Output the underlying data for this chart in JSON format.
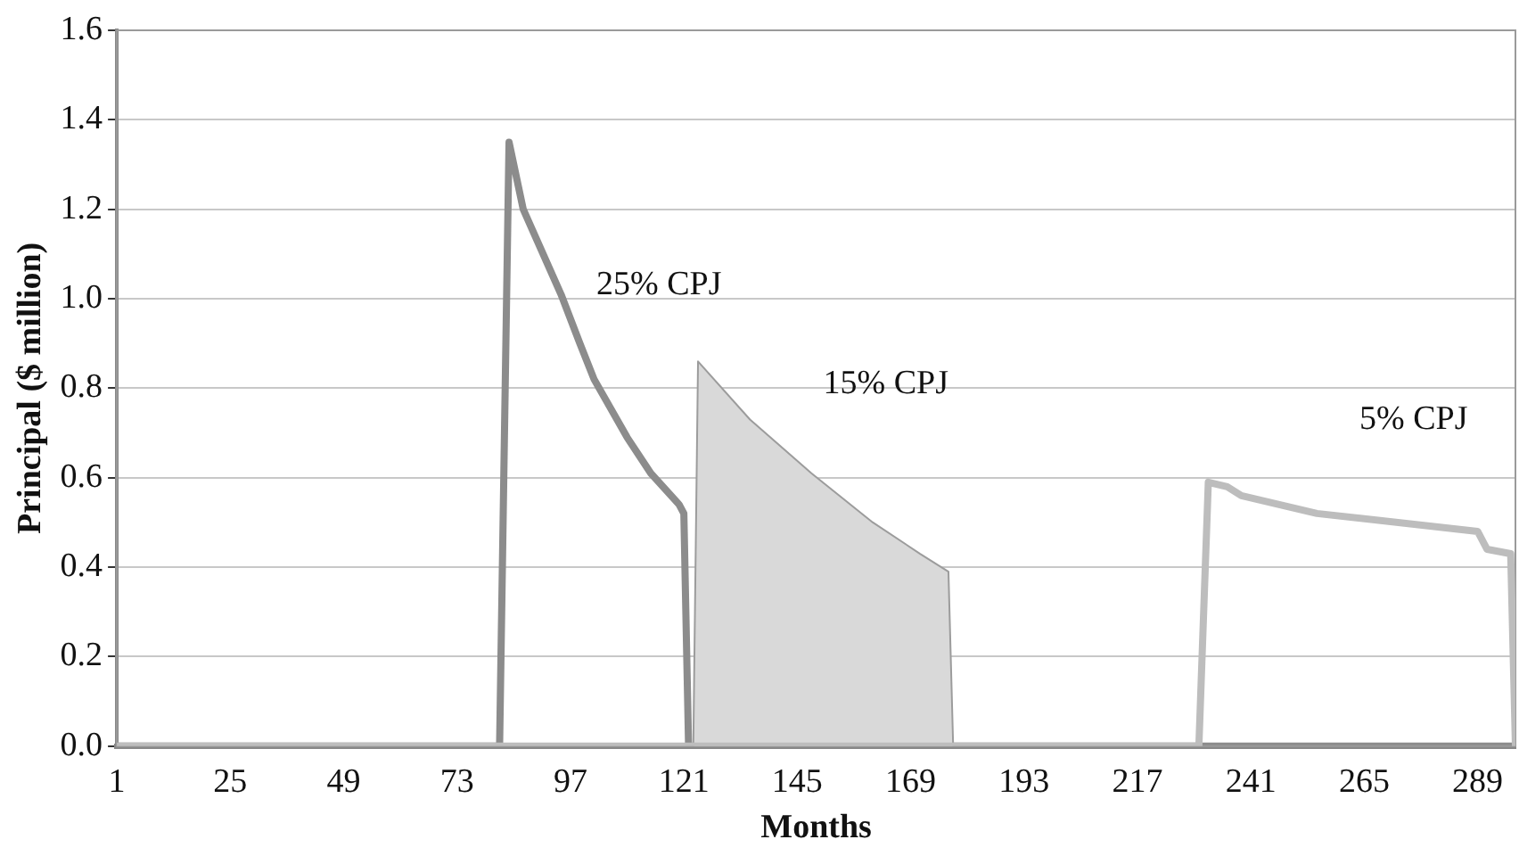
{
  "chart_data": {
    "type": "line",
    "xlabel": "Months",
    "ylabel": "Principal ($ million)",
    "xlim": [
      1,
      297
    ],
    "xticks": [
      1,
      25,
      49,
      73,
      97,
      121,
      145,
      169,
      193,
      217,
      241,
      265,
      289
    ],
    "ylim": [
      0,
      1.6
    ],
    "yticks": [
      {
        "value": 0,
        "label": "0.0"
      },
      {
        "value": 0.2,
        "label": "0.2"
      },
      {
        "value": 0.4,
        "label": "0.4"
      },
      {
        "value": 0.6,
        "label": "0.6"
      },
      {
        "value": 0.8,
        "label": "0.8"
      },
      {
        "value": 1,
        "label": "1.0"
      },
      {
        "value": 1.2,
        "label": "1.2"
      },
      {
        "value": 1.4,
        "label": "1.4"
      },
      {
        "value": 1.6,
        "label": "1.6"
      }
    ],
    "grid": "y",
    "legend": false,
    "marker": "none",
    "series": [
      {
        "name": "25% CPJ",
        "type": "line",
        "color": "#8c8c8c",
        "x": [
          1,
          82,
          84,
          87,
          95,
          99,
          102,
          109,
          114,
          120,
          121,
          122,
          297
        ],
        "values": [
          0,
          0,
          1.35,
          1.2,
          1.01,
          0.9,
          0.82,
          0.69,
          0.61,
          0.54,
          0.52,
          0,
          0
        ]
      },
      {
        "name": "15% CPJ",
        "type": "area",
        "color": "#d9d9d9",
        "x": [
          1,
          123,
          124,
          135,
          148,
          161,
          171,
          177,
          178,
          297
        ],
        "values": [
          0,
          0,
          0.86,
          0.73,
          0.61,
          0.5,
          0.43,
          0.39,
          0,
          0
        ]
      },
      {
        "name": "5% CPJ",
        "type": "line",
        "color": "#bdbdbd",
        "x": [
          1,
          230,
          232,
          236,
          239,
          255,
          289,
          291,
          296,
          297
        ],
        "values": [
          0,
          0,
          0.59,
          0.58,
          0.56,
          0.52,
          0.48,
          0.44,
          0.43,
          0
        ]
      }
    ]
  }
}
